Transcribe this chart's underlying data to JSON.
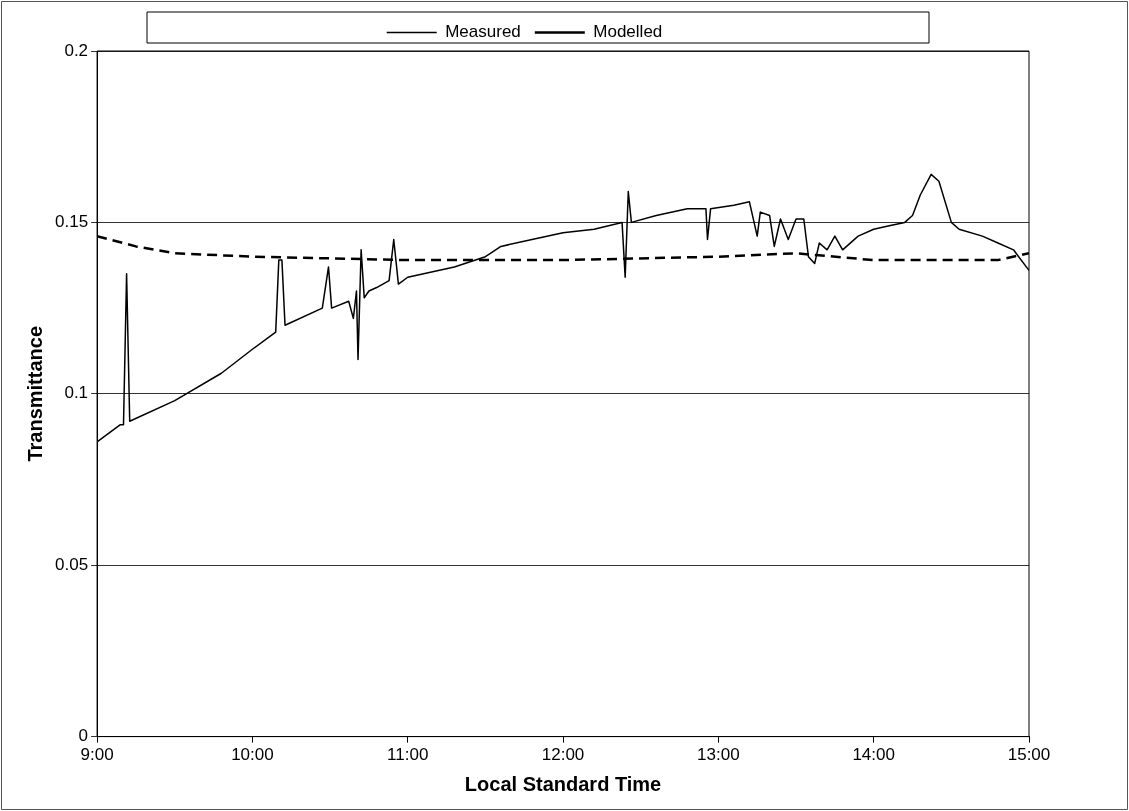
{
  "chart_data": {
    "type": "line",
    "xlabel": "Local Standard Time",
    "ylabel": "Transmittance",
    "xlim": [
      9,
      15
    ],
    "ylim": [
      0,
      0.2
    ],
    "xticks": [
      {
        "value": 9,
        "label": "9:00"
      },
      {
        "value": 10,
        "label": "10:00"
      },
      {
        "value": 11,
        "label": "11:00"
      },
      {
        "value": 12,
        "label": "12:00"
      },
      {
        "value": 13,
        "label": "13:00"
      },
      {
        "value": 14,
        "label": "14:00"
      },
      {
        "value": 15,
        "label": "15:00"
      }
    ],
    "yticks": [
      0,
      0.05,
      0.1,
      0.15,
      0.2
    ],
    "grid": "y",
    "legend": "top",
    "marker": "none",
    "series": [
      {
        "name": "Measured",
        "color": "#000000",
        "line_style": "solid",
        "x": [
          9.0,
          9.15,
          9.17,
          9.19,
          9.21,
          9.5,
          9.8,
          10.0,
          10.15,
          10.17,
          10.19,
          10.21,
          10.45,
          10.49,
          10.51,
          10.62,
          10.65,
          10.67,
          10.68,
          10.7,
          10.72,
          10.75,
          10.8,
          10.88,
          10.91,
          10.94,
          11.0,
          11.3,
          11.5,
          11.6,
          11.8,
          12.0,
          12.2,
          12.38,
          12.4,
          12.42,
          12.44,
          12.6,
          12.8,
          12.92,
          12.93,
          12.95,
          13.1,
          13.2,
          13.25,
          13.27,
          13.33,
          13.36,
          13.4,
          13.45,
          13.5,
          13.55,
          13.58,
          13.62,
          13.65,
          13.7,
          13.75,
          13.8,
          13.9,
          14.0,
          14.1,
          14.2,
          14.25,
          14.3,
          14.37,
          14.42,
          14.5,
          14.55,
          14.7,
          14.8,
          14.9,
          15.0
        ],
        "values": [
          0.086,
          0.091,
          0.091,
          0.135,
          0.092,
          0.098,
          0.106,
          0.113,
          0.118,
          0.139,
          0.139,
          0.12,
          0.125,
          0.137,
          0.125,
          0.127,
          0.122,
          0.13,
          0.11,
          0.142,
          0.128,
          0.13,
          0.131,
          0.133,
          0.145,
          0.132,
          0.134,
          0.137,
          0.14,
          0.143,
          0.145,
          0.147,
          0.148,
          0.15,
          0.134,
          0.159,
          0.15,
          0.152,
          0.154,
          0.154,
          0.145,
          0.154,
          0.155,
          0.156,
          0.146,
          0.153,
          0.152,
          0.143,
          0.151,
          0.145,
          0.151,
          0.151,
          0.14,
          0.138,
          0.144,
          0.142,
          0.146,
          0.142,
          0.146,
          0.148,
          0.149,
          0.15,
          0.152,
          0.158,
          0.164,
          0.162,
          0.15,
          0.148,
          0.146,
          0.144,
          0.142,
          0.136
        ]
      },
      {
        "name": "Modelled",
        "color": "#000000",
        "line_style": "dashed",
        "x": [
          9.0,
          9.25,
          9.5,
          10.0,
          11.0,
          12.0,
          13.0,
          13.5,
          14.0,
          14.5,
          14.8,
          15.0
        ],
        "values": [
          0.146,
          0.143,
          0.141,
          0.14,
          0.139,
          0.139,
          0.14,
          0.141,
          0.139,
          0.139,
          0.139,
          0.141
        ]
      }
    ]
  }
}
